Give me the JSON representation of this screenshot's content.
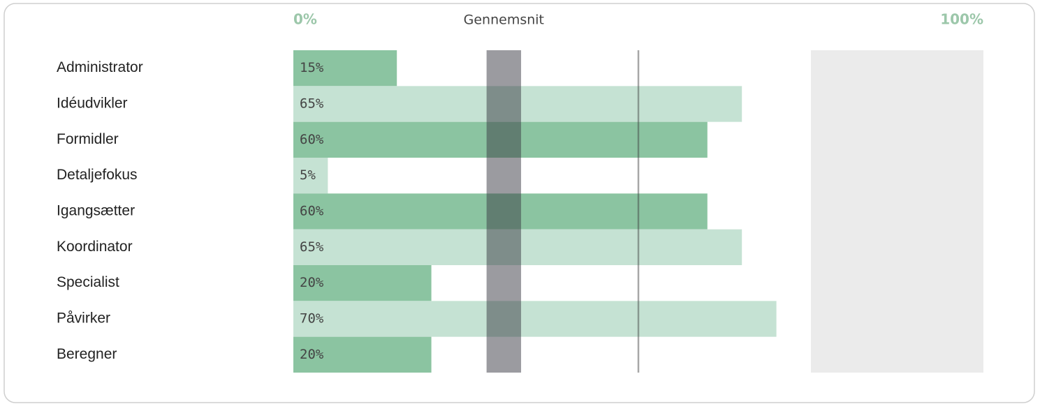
{
  "chart_data": {
    "type": "bar",
    "orientation": "horizontal",
    "categories": [
      "Administrator",
      "Idéudvikler",
      "Formidler",
      "Detaljefokus",
      "Igangsætter",
      "Koordinator",
      "Specialist",
      "Påvirker",
      "Beregner"
    ],
    "values": [
      15,
      65,
      60,
      5,
      60,
      65,
      20,
      70,
      20
    ],
    "value_labels": [
      "15%",
      "65%",
      "60%",
      "5%",
      "60%",
      "65%",
      "20%",
      "70%",
      "20%"
    ],
    "colors": [
      "#8bc4a1",
      "#c5e2d3"
    ],
    "xlim": [
      0,
      100
    ],
    "xticks": [
      {
        "value": 0,
        "label": "0%"
      },
      {
        "value": 100,
        "label": "100%"
      }
    ],
    "average_label": "Gennemsnit",
    "average_band": [
      28,
      33
    ],
    "reference_line": 50,
    "shaded_range": [
      75,
      100
    ]
  }
}
